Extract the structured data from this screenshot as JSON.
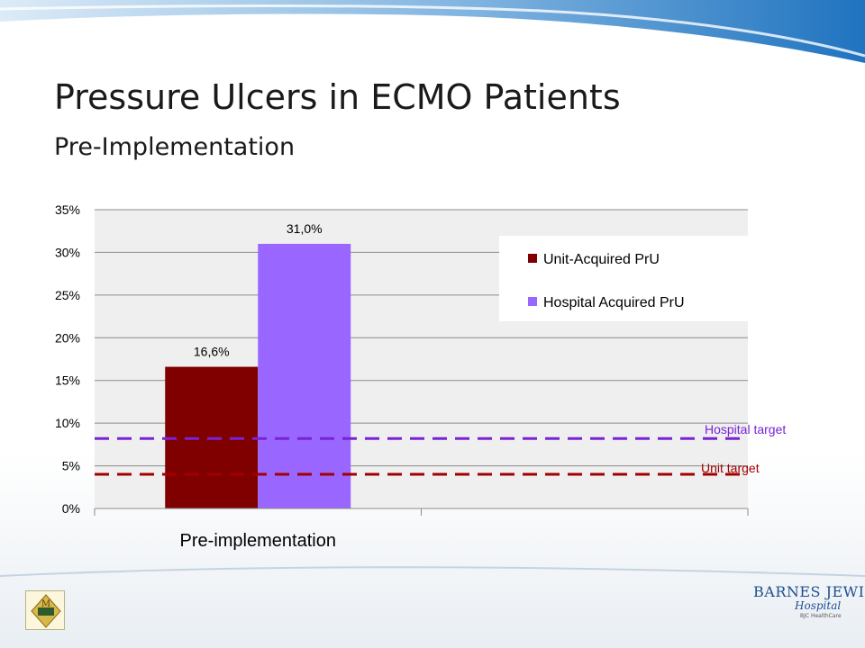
{
  "slide": {
    "title": "Pressure Ulcers in ECMO Patients",
    "subtitle": "Pre-Implementation"
  },
  "colors": {
    "unit_bar": "#800000",
    "hospital_bar": "#9966ff",
    "unit_target_line": "#a00000",
    "hospital_target_line": "#7a22d6",
    "plot_background": "#efefef",
    "header_blue": "#1f73bf"
  },
  "chart_data": {
    "type": "bar",
    "categories": [
      "Pre-implementation"
    ],
    "series": [
      {
        "name": "Unit-Acquired PrU",
        "values": [
          16.6
        ],
        "label": "16,6%"
      },
      {
        "name": "Hospital Acquired PrU",
        "values": [
          31.0
        ],
        "label": "31,0%"
      }
    ],
    "ylim": [
      0,
      35
    ],
    "y_ticks": [
      "0%",
      "5%",
      "10%",
      "15%",
      "20%",
      "25%",
      "30%",
      "35%"
    ],
    "grid": true,
    "legend_position": "top-right",
    "targets": [
      {
        "label": "Hospital target",
        "value": 8.2
      },
      {
        "label": "Unit target",
        "value": 4
      }
    ]
  },
  "logos": {
    "left_icon": "award-seal-icon",
    "right_name": "BARNES JEWISH",
    "right_sub": "Hospital",
    "right_tiny": "BJC HealthCare"
  }
}
